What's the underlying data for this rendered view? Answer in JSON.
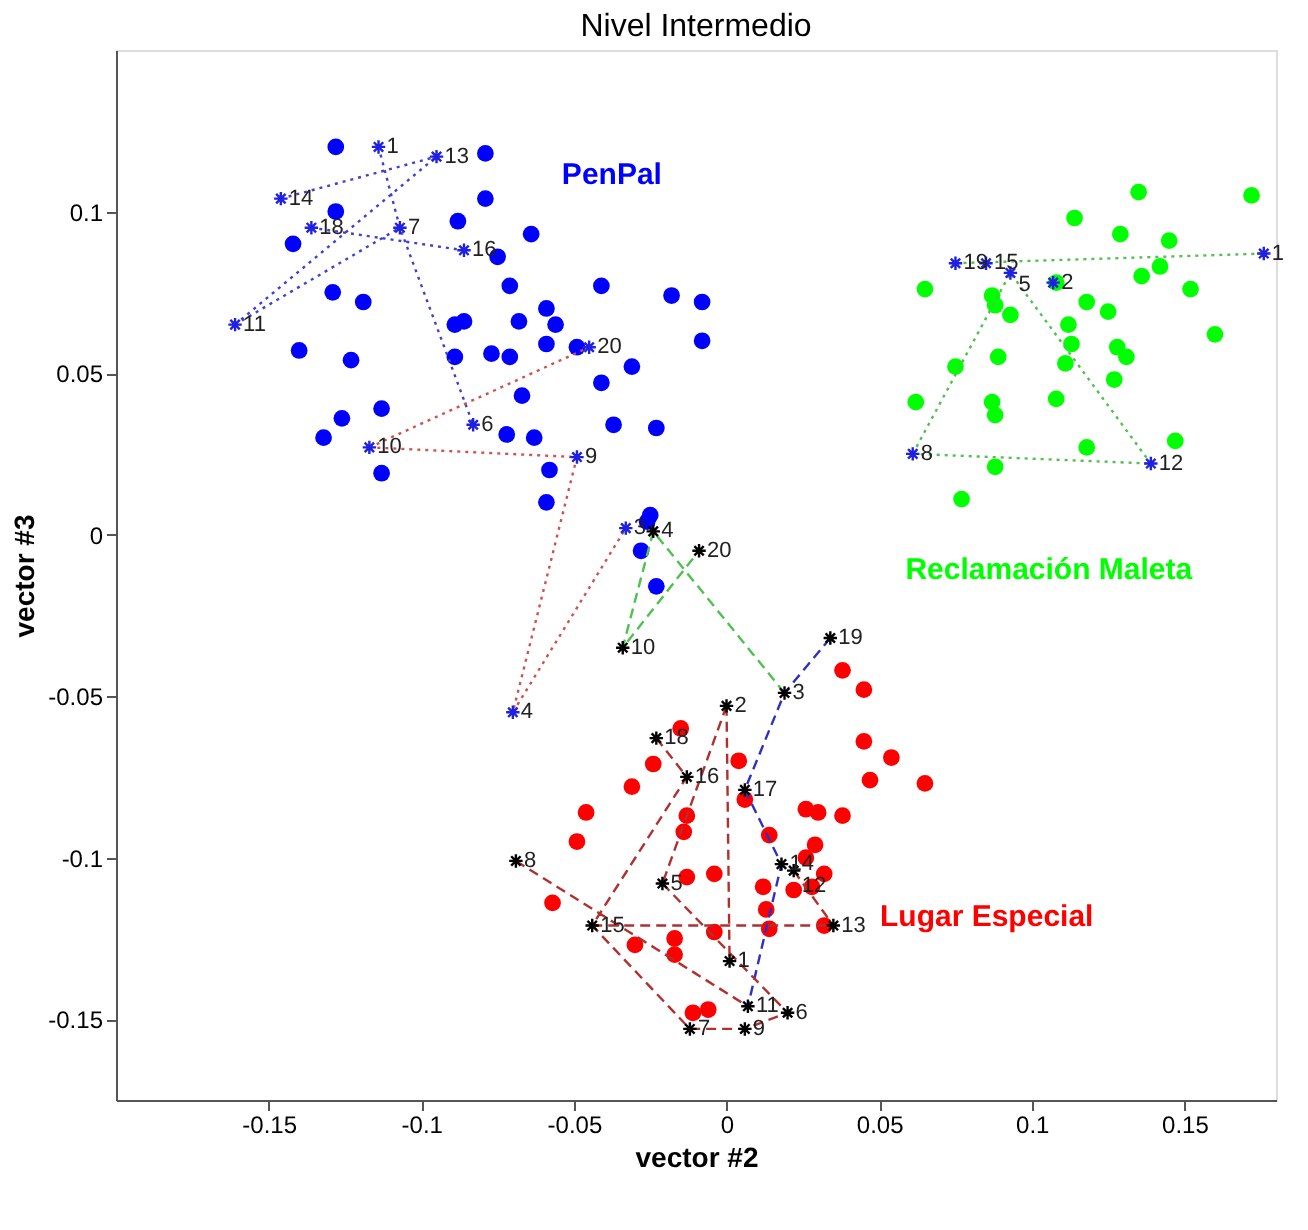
{
  "chart_data": {
    "type": "scatter",
    "title": "Nivel Intermedio",
    "xlabel": "vector #2",
    "ylabel": "vector #3",
    "xlim": [
      -0.2,
      0.18
    ],
    "ylim": [
      -0.175,
      0.15
    ],
    "xticks": [
      -0.15,
      -0.1,
      -0.05,
      0,
      0.05,
      0.1,
      0.15
    ],
    "yticks": [
      -0.15,
      -0.1,
      -0.05,
      0,
      0.05,
      0.1
    ],
    "grid": false,
    "annotations": [
      {
        "text": "1",
        "x": -0.114,
        "y": 0.12
      },
      {
        "text": "13",
        "x": -0.095,
        "y": 0.117
      },
      {
        "text": "14",
        "x": -0.146,
        "y": 0.104
      },
      {
        "text": "18",
        "x": -0.136,
        "y": 0.095
      },
      {
        "text": "7",
        "x": -0.107,
        "y": 0.095
      },
      {
        "text": "16",
        "x": -0.086,
        "y": 0.088
      },
      {
        "text": "11",
        "x": -0.161,
        "y": 0.065
      },
      {
        "text": "20",
        "x": -0.045,
        "y": 0.058
      },
      {
        "text": "6",
        "x": -0.083,
        "y": 0.034
      },
      {
        "text": "10",
        "x": -0.117,
        "y": 0.027
      },
      {
        "text": "9",
        "x": -0.049,
        "y": 0.024
      },
      {
        "text": "3",
        "x": -0.033,
        "y": 0.002
      },
      {
        "text": "4",
        "x": -0.07,
        "y": -0.055
      },
      {
        "text": "19",
        "x": 0.075,
        "y": 0.084
      },
      {
        "text": "15",
        "x": 0.085,
        "y": 0.084
      },
      {
        "text": "5",
        "x": 0.093,
        "y": 0.081
      },
      {
        "text": "2",
        "x": 0.107,
        "y": 0.078
      },
      {
        "text": "1",
        "x": 0.176,
        "y": 0.087
      },
      {
        "text": "8",
        "x": 0.061,
        "y": 0.025
      },
      {
        "text": "12",
        "x": 0.139,
        "y": 0.022
      },
      {
        "text": "2",
        "x": 0,
        "y": -0.053
      },
      {
        "text": "18",
        "x": -0.023,
        "y": -0.063
      },
      {
        "text": "16",
        "x": -0.013,
        "y": -0.075
      },
      {
        "text": "17",
        "x": 0.006,
        "y": -0.079
      },
      {
        "text": "14",
        "x": 0.018,
        "y": -0.102
      },
      {
        "text": "12",
        "x": 0.022,
        "y": -0.104
      },
      {
        "text": "8",
        "x": -0.069,
        "y": -0.101
      },
      {
        "text": "5",
        "x": -0.021,
        "y": -0.108
      },
      {
        "text": "15",
        "x": -0.044,
        "y": -0.121
      },
      {
        "text": "13",
        "x": 0.035,
        "y": -0.121
      },
      {
        "text": "1",
        "x": 0.001,
        "y": -0.132
      },
      {
        "text": "11",
        "x": 0.007,
        "y": -0.146
      },
      {
        "text": "6",
        "x": 0.02,
        "y": -0.148
      },
      {
        "text": "7",
        "x": -0.012,
        "y": -0.153
      },
      {
        "text": "9",
        "x": 0.006,
        "y": -0.153
      },
      {
        "text": "4",
        "x": -0.024,
        "y": 0.001
      },
      {
        "text": "20",
        "x": -0.009,
        "y": -0.005
      },
      {
        "text": "10",
        "x": -0.034,
        "y": -0.035
      },
      {
        "text": "3",
        "x": 0.019,
        "y": -0.049
      },
      {
        "text": "19",
        "x": 0.034,
        "y": -0.032
      }
    ],
    "series": [
      {
        "name": "PenPal",
        "marker": "circle",
        "color": "#0000ff",
        "x": [
          -0.128,
          -0.079,
          -0.079,
          -0.128,
          -0.088,
          -0.064,
          -0.142,
          -0.075,
          -0.071,
          -0.041,
          -0.129,
          -0.119,
          -0.018,
          -0.008,
          -0.059,
          -0.089,
          -0.086,
          -0.068,
          -0.056,
          -0.008,
          -0.059,
          -0.049,
          -0.14,
          -0.089,
          -0.077,
          -0.071,
          -0.123,
          -0.031,
          -0.041,
          -0.067,
          -0.113,
          -0.126,
          -0.132,
          -0.037,
          -0.023,
          -0.072,
          -0.063,
          -0.113,
          -0.058,
          -0.059,
          -0.025,
          -0.026,
          -0.028,
          -0.023
        ],
        "values": [
          0.12,
          0.118,
          0.104,
          0.1,
          0.097,
          0.093,
          0.09,
          0.086,
          0.077,
          0.077,
          0.075,
          0.072,
          0.074,
          0.072,
          0.07,
          0.065,
          0.066,
          0.066,
          0.065,
          0.06,
          0.059,
          0.058,
          0.057,
          0.055,
          0.056,
          0.055,
          0.054,
          0.052,
          0.047,
          0.043,
          0.039,
          0.036,
          0.03,
          0.034,
          0.033,
          0.031,
          0.03,
          0.019,
          0.02,
          0.01,
          0.006,
          0.004,
          -0.005,
          -0.016
        ]
      },
      {
        "name": "Reclamación Maleta",
        "marker": "circle",
        "color": "#00ff00",
        "x": [
          0.135,
          0.172,
          0.114,
          0.129,
          0.145,
          0.142,
          0.136,
          0.152,
          0.065,
          0.087,
          0.088,
          0.093,
          0.118,
          0.125,
          0.112,
          0.16,
          0.113,
          0.089,
          0.128,
          0.131,
          0.075,
          0.111,
          0.127,
          0.062,
          0.087,
          0.088,
          0.108,
          0.118,
          0.147,
          0.088,
          0.077,
          0.108
        ],
        "values": [
          0.106,
          0.105,
          0.098,
          0.093,
          0.091,
          0.083,
          0.08,
          0.076,
          0.076,
          0.074,
          0.071,
          0.068,
          0.072,
          0.069,
          0.065,
          0.062,
          0.059,
          0.055,
          0.058,
          0.055,
          0.052,
          0.053,
          0.048,
          0.041,
          0.041,
          0.037,
          0.042,
          0.027,
          0.029,
          0.021,
          0.011,
          0.078
        ]
      },
      {
        "name": "Lugar Especial",
        "marker": "circle",
        "color": "#ff0000",
        "x": [
          0.038,
          0.045,
          -0.015,
          -0.024,
          0.004,
          0.045,
          0.054,
          0.047,
          0.065,
          -0.031,
          0.006,
          -0.046,
          -0.013,
          -0.014,
          0.026,
          0.03,
          0.038,
          -0.049,
          0.014,
          0.029,
          0.026,
          -0.013,
          -0.004,
          0.032,
          0.028,
          0.022,
          0.012,
          -0.057,
          0.013,
          -0.004,
          0.014,
          0.032,
          -0.03,
          -0.017,
          -0.017,
          -0.011,
          -0.006
        ],
        "values": [
          -0.042,
          -0.048,
          -0.06,
          -0.071,
          -0.07,
          -0.064,
          -0.069,
          -0.076,
          -0.077,
          -0.078,
          -0.082,
          -0.086,
          -0.087,
          -0.092,
          -0.085,
          -0.086,
          -0.087,
          -0.095,
          -0.093,
          -0.096,
          -0.1,
          -0.106,
          -0.105,
          -0.105,
          -0.109,
          -0.11,
          -0.109,
          -0.114,
          -0.116,
          -0.123,
          -0.122,
          -0.121,
          -0.127,
          -0.125,
          -0.13,
          -0.148,
          -0.147
        ]
      },
      {
        "type": "line",
        "line_style": "dotted",
        "color": "#4040d0",
        "x": [
          -0.146,
          -0.095,
          null,
          -0.161,
          -0.095,
          null,
          -0.161,
          -0.107,
          null,
          -0.136,
          -0.086,
          null,
          -0.114,
          -0.107,
          -0.083
        ],
        "values": [
          0.104,
          0.117,
          null,
          0.065,
          0.117,
          null,
          0.065,
          0.095,
          null,
          0.095,
          0.088,
          null,
          0.12,
          0.095,
          0.034
        ]
      },
      {
        "type": "line",
        "line_style": "dotted",
        "color": "#d05050",
        "x": [
          -0.117,
          -0.049,
          null,
          -0.117,
          -0.045,
          null,
          -0.049,
          -0.07,
          -0.033
        ],
        "values": [
          0.027,
          0.024,
          null,
          0.027,
          0.058,
          null,
          0.024,
          -0.055,
          0.002
        ]
      },
      {
        "type": "line",
        "line_style": "dotted",
        "color": "#50c050",
        "x": [
          0.075,
          0.176,
          null,
          0.061,
          0.139,
          null,
          0.061,
          0.093,
          0.139
        ],
        "values": [
          0.084,
          0.087,
          null,
          0.025,
          0.022,
          null,
          0.025,
          0.081,
          0.022
        ]
      },
      {
        "type": "line",
        "line_style": "dashed",
        "color": "#50c050",
        "x": [
          0.019,
          -0.024,
          -0.034,
          -0.009
        ],
        "values": [
          -0.049,
          0.001,
          -0.035,
          -0.005
        ]
      },
      {
        "type": "line",
        "line_style": "dashed",
        "color": "#3030c0",
        "x": [
          0.034,
          0.019,
          0.006,
          0.018,
          0.007
        ],
        "values": [
          -0.032,
          -0.049,
          -0.079,
          -0.102,
          -0.146
        ]
      },
      {
        "type": "line",
        "line_style": "dashed",
        "color": "#b03030",
        "x": [
          0,
          0.001,
          null,
          0,
          -0.021,
          null,
          -0.023,
          -0.013,
          -0.044,
          -0.012,
          0.006,
          0.02,
          null,
          -0.069,
          0.007,
          null,
          -0.044,
          0.035,
          null,
          -0.021,
          0.02,
          null,
          0.022,
          0.035
        ],
        "values": [
          -0.053,
          -0.132,
          null,
          -0.053,
          -0.108,
          null,
          -0.063,
          -0.075,
          -0.121,
          -0.153,
          -0.153,
          -0.148,
          null,
          -0.101,
          -0.146,
          null,
          -0.121,
          -0.121,
          null,
          -0.108,
          -0.148,
          null,
          -0.104,
          -0.121
        ]
      },
      {
        "marker": "cross",
        "color": "#2020e0",
        "x": [
          -0.114,
          -0.095,
          -0.146,
          -0.136,
          -0.107,
          -0.086,
          -0.161,
          -0.045,
          -0.083,
          -0.117,
          -0.049,
          -0.033,
          -0.07,
          0.075,
          0.085,
          0.093,
          0.107,
          0.176,
          0.061,
          0.139
        ],
        "values": [
          0.12,
          0.117,
          0.104,
          0.095,
          0.095,
          0.088,
          0.065,
          0.058,
          0.034,
          0.027,
          0.024,
          0.002,
          -0.055,
          0.084,
          0.084,
          0.081,
          0.078,
          0.087,
          0.025,
          0.022
        ]
      },
      {
        "marker": "cross",
        "color": "#000000",
        "x": [
          0,
          -0.023,
          -0.013,
          0.006,
          0.018,
          0.022,
          -0.069,
          -0.021,
          -0.044,
          0.035,
          0.001,
          0.007,
          0.02,
          -0.012,
          0.006,
          -0.024,
          -0.009,
          -0.034,
          0.019,
          0.034
        ],
        "values": [
          -0.053,
          -0.063,
          -0.075,
          -0.079,
          -0.102,
          -0.104,
          -0.101,
          -0.108,
          -0.121,
          -0.121,
          -0.132,
          -0.146,
          -0.148,
          -0.153,
          -0.153,
          0.001,
          -0.005,
          -0.035,
          -0.049,
          -0.032
        ]
      }
    ]
  }
}
